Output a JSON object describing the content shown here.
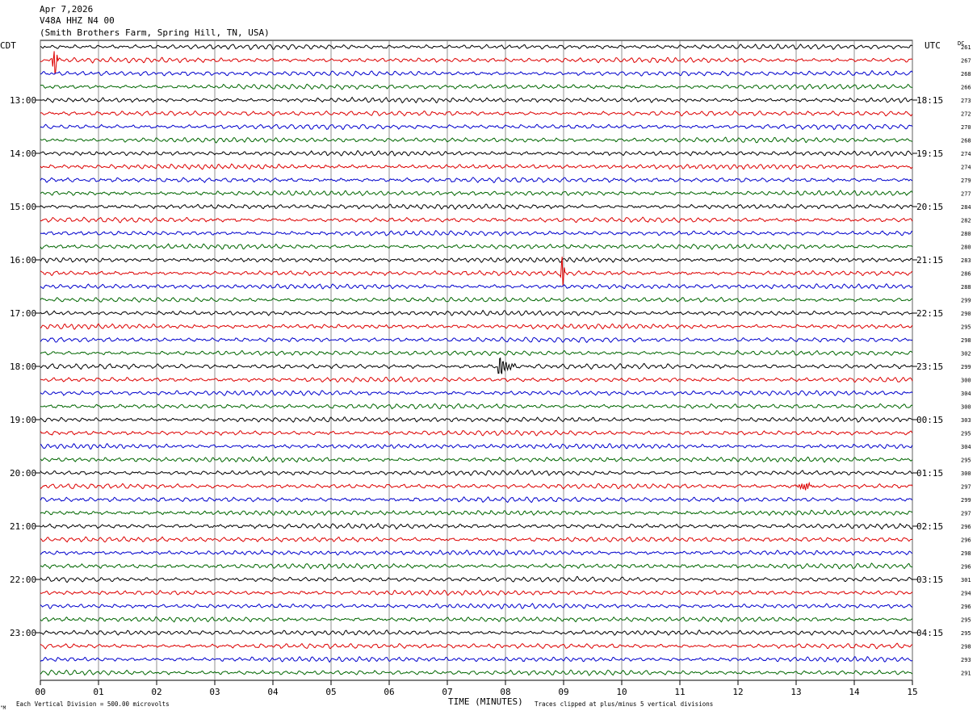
{
  "header": {
    "date": "Apr 7,2026",
    "station": "V48A HHZ N4 00",
    "location": "(Smith Brothers Farm, Spring Hill, TN, USA)"
  },
  "left_axis_label": "CDT",
  "right_axis_label": "UTC",
  "dc_label": "DC",
  "footer": {
    "scale": "Each Vertical Division =  500.00 microvolts",
    "xlabel": "TIME (MINUTES)",
    "clip_note": "Traces clipped at plus/minus 5 vertical divisions",
    "corner_mark": "\"M"
  },
  "colors": [
    "#000000",
    "#dd0000",
    "#0000cc",
    "#006600"
  ],
  "chart_data": {
    "type": "line",
    "title": "V48A HHZ N4 00",
    "xlabel": "TIME (MINUTES)",
    "x_ticks": [
      "00",
      "01",
      "02",
      "03",
      "04",
      "05",
      "06",
      "07",
      "08",
      "09",
      "10",
      "11",
      "12",
      "13",
      "14",
      "15"
    ],
    "xlim": [
      0,
      15
    ],
    "trace_minutes": 15,
    "trace_count": 48,
    "left_hour_labels": [
      {
        "row": 4,
        "text": "13:00"
      },
      {
        "row": 8,
        "text": "14:00"
      },
      {
        "row": 12,
        "text": "15:00"
      },
      {
        "row": 16,
        "text": "16:00"
      },
      {
        "row": 20,
        "text": "17:00"
      },
      {
        "row": 24,
        "text": "18:00"
      },
      {
        "row": 28,
        "text": "19:00"
      },
      {
        "row": 32,
        "text": "20:00"
      },
      {
        "row": 36,
        "text": "21:00"
      },
      {
        "row": 40,
        "text": "22:00"
      },
      {
        "row": 44,
        "text": "23:00"
      }
    ],
    "right_hour_labels": [
      {
        "row": 4,
        "text": "18:15"
      },
      {
        "row": 8,
        "text": "19:15"
      },
      {
        "row": 12,
        "text": "20:15"
      },
      {
        "row": 16,
        "text": "21:15"
      },
      {
        "row": 20,
        "text": "22:15"
      },
      {
        "row": 24,
        "text": "23:15"
      },
      {
        "row": 28,
        "text": "00:15"
      },
      {
        "row": 32,
        "text": "01:15"
      },
      {
        "row": 36,
        "text": "02:15"
      },
      {
        "row": 40,
        "text": "03:15"
      },
      {
        "row": 44,
        "text": "04:15"
      }
    ],
    "dc_offsets": [
      261,
      267,
      268,
      266,
      273,
      272,
      270,
      268,
      274,
      274,
      279,
      277,
      284,
      282,
      280,
      280,
      283,
      286,
      288,
      299,
      290,
      295,
      298,
      302,
      299,
      300,
      304,
      300,
      303,
      295,
      304,
      295,
      300,
      297,
      299,
      297,
      296,
      296,
      298,
      296,
      301,
      294,
      296,
      295,
      295,
      298,
      293,
      291
    ],
    "events": [
      {
        "row": 1,
        "minute": 0.25,
        "amplitude": 10,
        "kind": "spike"
      },
      {
        "row": 17,
        "minute": 8.98,
        "amplitude": 12,
        "kind": "spike"
      },
      {
        "row": 24,
        "minute": 7.92,
        "amplitude": 8,
        "kind": "quake"
      },
      {
        "row": 33,
        "minute": 13.15,
        "amplitude": 3,
        "kind": "burst"
      }
    ]
  }
}
